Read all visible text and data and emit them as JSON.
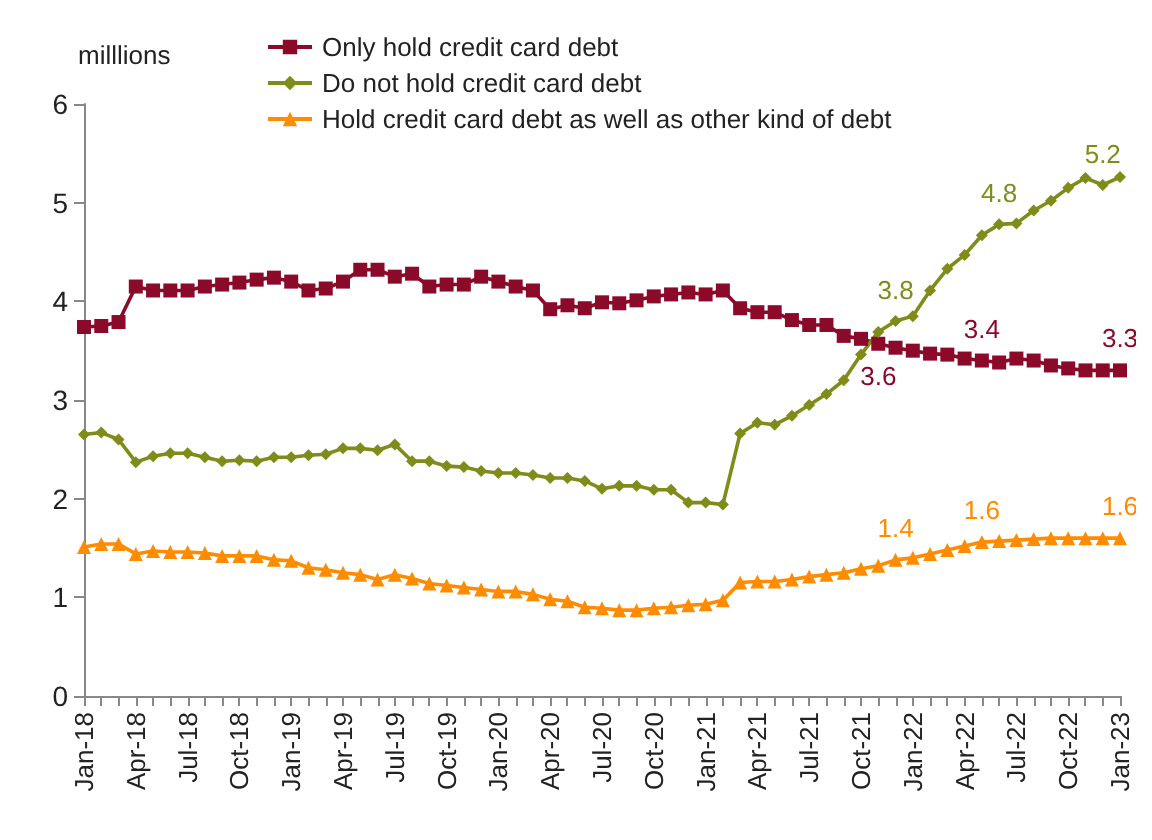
{
  "chart_data": {
    "type": "line",
    "ylabel": "milllions",
    "categories": [
      "Jan-18",
      null,
      null,
      "Apr-18",
      null,
      null,
      "Jul-18",
      null,
      null,
      "Oct-18",
      null,
      null,
      "Jan-19",
      null,
      null,
      "Apr-19",
      null,
      null,
      "Jul-19",
      null,
      null,
      "Oct-19",
      null,
      null,
      "Jan-20",
      null,
      null,
      "Apr-20",
      null,
      null,
      "Jul-20",
      null,
      null,
      "Oct-20",
      null,
      null,
      "Jan-21",
      null,
      null,
      "Apr-21",
      null,
      null,
      "Jul-21",
      null,
      null,
      "Oct-21",
      null,
      null,
      "Jan-22",
      null,
      null,
      "Apr-22",
      null,
      null,
      "Jul-22",
      null,
      null,
      "Oct-22",
      null,
      null,
      "Jan-23"
    ],
    "ylim": [
      0,
      6
    ],
    "yticks": [
      0,
      1,
      2,
      3,
      4,
      5,
      6
    ],
    "grid": false,
    "legend": "top",
    "series": [
      {
        "name": "Only hold credit card debt",
        "color": "#8b0a2a",
        "marker": "square",
        "values": [
          3.74,
          3.75,
          3.79,
          4.15,
          4.11,
          4.11,
          4.11,
          4.15,
          4.17,
          4.19,
          4.22,
          4.24,
          4.2,
          4.11,
          4.13,
          4.2,
          4.32,
          4.32,
          4.25,
          4.28,
          4.15,
          4.17,
          4.17,
          4.25,
          4.2,
          4.15,
          4.11,
          3.92,
          3.96,
          3.93,
          3.99,
          3.98,
          4.01,
          4.05,
          4.07,
          4.09,
          4.07,
          4.11,
          3.93,
          3.89,
          3.89,
          3.81,
          3.76,
          3.76,
          3.65,
          3.62,
          3.57,
          3.53,
          3.5,
          3.47,
          3.46,
          3.42,
          3.4,
          3.38,
          3.42,
          3.4,
          3.35,
          3.32,
          3.3,
          3.3,
          3.3
        ],
        "value_labels": [
          null,
          null,
          null,
          null,
          null,
          null,
          null,
          null,
          null,
          null,
          null,
          null,
          null,
          null,
          null,
          null,
          null,
          null,
          null,
          null,
          null,
          null,
          null,
          null,
          null,
          null,
          null,
          null,
          null,
          null,
          null,
          null,
          null,
          null,
          null,
          null,
          null,
          null,
          null,
          null,
          null,
          null,
          null,
          null,
          null,
          null,
          "3.6",
          null,
          null,
          null,
          null,
          null,
          "3.4",
          null,
          null,
          null,
          null,
          null,
          null,
          null,
          "3.3"
        ]
      },
      {
        "name": "Do not hold credit card debt",
        "color": "#7f8c1a",
        "marker": "diamond",
        "values": [
          2.65,
          2.67,
          2.6,
          2.37,
          2.43,
          2.46,
          2.46,
          2.42,
          2.38,
          2.39,
          2.38,
          2.42,
          2.42,
          2.44,
          2.45,
          2.51,
          2.51,
          2.49,
          2.55,
          2.38,
          2.38,
          2.33,
          2.32,
          2.28,
          2.26,
          2.26,
          2.24,
          2.21,
          2.21,
          2.18,
          2.1,
          2.13,
          2.13,
          2.09,
          2.09,
          1.96,
          1.96,
          1.94,
          2.66,
          2.77,
          2.75,
          2.84,
          2.95,
          3.06,
          3.2,
          3.46,
          3.69,
          3.8,
          3.85,
          4.11,
          4.33,
          4.47,
          4.67,
          4.78,
          4.79,
          4.92,
          5.02,
          5.15,
          5.25,
          5.18,
          5.26
        ],
        "value_labels": [
          null,
          null,
          null,
          null,
          null,
          null,
          null,
          null,
          null,
          null,
          null,
          null,
          null,
          null,
          null,
          null,
          null,
          null,
          null,
          null,
          null,
          null,
          null,
          null,
          null,
          null,
          null,
          null,
          null,
          null,
          null,
          null,
          null,
          null,
          null,
          null,
          null,
          null,
          null,
          null,
          null,
          null,
          null,
          null,
          null,
          null,
          null,
          "3.8",
          null,
          null,
          null,
          null,
          null,
          "4.8",
          null,
          null,
          null,
          null,
          null,
          "5.2",
          null
        ]
      },
      {
        "name": "Hold credit card debt as well as other kind of debt",
        "color": "#ff8c00",
        "marker": "triangle",
        "values": [
          1.51,
          1.54,
          1.54,
          1.44,
          1.47,
          1.46,
          1.46,
          1.45,
          1.42,
          1.42,
          1.42,
          1.38,
          1.37,
          1.3,
          1.28,
          1.25,
          1.23,
          1.18,
          1.23,
          1.19,
          1.14,
          1.12,
          1.1,
          1.08,
          1.06,
          1.06,
          1.03,
          0.98,
          0.96,
          0.9,
          0.89,
          0.87,
          0.87,
          0.89,
          0.9,
          0.92,
          0.93,
          0.97,
          1.15,
          1.16,
          1.16,
          1.18,
          1.21,
          1.23,
          1.25,
          1.29,
          1.32,
          1.38,
          1.4,
          1.44,
          1.48,
          1.52,
          1.56,
          1.57,
          1.58,
          1.59,
          1.6,
          1.6,
          1.6,
          1.6,
          1.6
        ],
        "value_labels": [
          null,
          null,
          null,
          null,
          null,
          null,
          null,
          null,
          null,
          null,
          null,
          null,
          null,
          null,
          null,
          null,
          null,
          null,
          null,
          null,
          null,
          null,
          null,
          null,
          null,
          null,
          null,
          null,
          null,
          null,
          null,
          null,
          null,
          null,
          null,
          null,
          null,
          null,
          null,
          null,
          null,
          null,
          null,
          null,
          null,
          null,
          null,
          "1.4",
          null,
          null,
          null,
          null,
          "1.6",
          null,
          null,
          null,
          null,
          null,
          null,
          null,
          "1.6"
        ]
      }
    ]
  }
}
